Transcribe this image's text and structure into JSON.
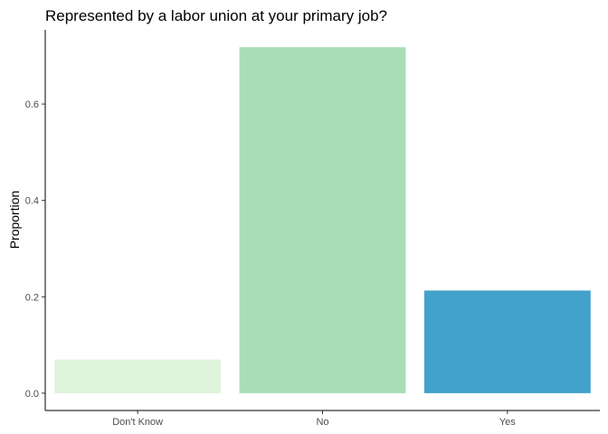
{
  "chart_data": {
    "type": "bar",
    "title": "Represented by a labor union at your primary job?",
    "xlabel": "",
    "ylabel": "Proportion",
    "categories": [
      "Don't Know",
      "No",
      "Yes"
    ],
    "values": [
      0.07,
      0.718,
      0.213
    ],
    "colors": [
      "#e0f3db",
      "#a8ddb5",
      "#43a2ca"
    ],
    "ylim": [
      -0.0359,
      0.754
    ],
    "yticks": [
      0.0,
      0.2,
      0.4,
      0.6
    ],
    "ytick_labels": [
      "0.0",
      "0.2",
      "0.4",
      "0.6"
    ],
    "grid": false,
    "legend": "none"
  }
}
